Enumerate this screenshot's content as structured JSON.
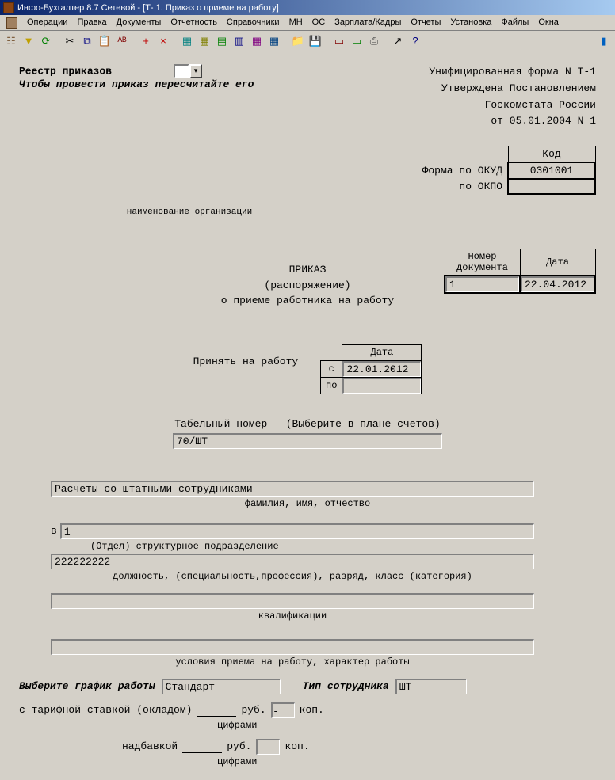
{
  "window": {
    "title": "Инфо-Бухгалтер 8.7 Сетевой - [Т- 1. Приказ о приеме на работу]"
  },
  "menu": {
    "items": [
      "Операции",
      "Правка",
      "Документы",
      "Отчетность",
      "Справочники",
      "МН",
      "ОС",
      "Зарплата/Кадры",
      "Отчеты",
      "Установка",
      "Файлы",
      "Окна"
    ]
  },
  "toolbar_icons": [
    {
      "name": "hierarchy-icon",
      "glyph": "☷",
      "color": "#806040"
    },
    {
      "name": "filter-icon",
      "glyph": "▼",
      "color": "#c0a000"
    },
    {
      "name": "refresh-icon",
      "glyph": "⟳",
      "color": "#008000"
    },
    {
      "name": "cut-icon",
      "glyph": "✂",
      "color": "#000"
    },
    {
      "name": "copy-icon",
      "glyph": "⧉",
      "color": "#000080"
    },
    {
      "name": "paste-icon",
      "glyph": "📋",
      "color": "#806000"
    },
    {
      "name": "abc-icon",
      "glyph": "ᴬᴮ",
      "color": "#800000"
    },
    {
      "name": "plus-icon",
      "glyph": "+",
      "color": "#c00000"
    },
    {
      "name": "delete-icon",
      "glyph": "×",
      "color": "#c00000"
    },
    {
      "name": "table1-icon",
      "glyph": "▦",
      "color": "#008080"
    },
    {
      "name": "table2-icon",
      "glyph": "▦",
      "color": "#808000"
    },
    {
      "name": "doc-icon",
      "glyph": "▤",
      "color": "#008000"
    },
    {
      "name": "report-icon",
      "glyph": "▥",
      "color": "#000080"
    },
    {
      "name": "grid-icon",
      "glyph": "▦",
      "color": "#800080"
    },
    {
      "name": "calc-icon",
      "glyph": "▦",
      "color": "#004080"
    },
    {
      "name": "folder-icon",
      "glyph": "📁",
      "color": "#c0a000"
    },
    {
      "name": "save-icon",
      "glyph": "💾",
      "color": "#000080"
    },
    {
      "name": "form1-icon",
      "glyph": "▭",
      "color": "#800000"
    },
    {
      "name": "form2-icon",
      "glyph": "▭",
      "color": "#008000"
    },
    {
      "name": "print-icon",
      "glyph": "⎙",
      "color": "#404040"
    },
    {
      "name": "arrow-icon",
      "glyph": "↗",
      "color": "#000"
    },
    {
      "name": "help-icon",
      "glyph": "?",
      "color": "#000080"
    },
    {
      "name": "end-icon",
      "glyph": "▮",
      "color": "#0060c0"
    }
  ],
  "doc": {
    "registry_label": "Реестр приказов",
    "registry_hint": "Чтобы провести приказ пересчитайте его",
    "form_line1": "Унифицированная форма N Т-1",
    "form_line2": "Утверждена Постановлением",
    "form_line3": "Госкомстата России",
    "form_line4": "от 05.01.2004 N 1",
    "code_hdr": "Код",
    "okud_label": "Форма по ОКУД",
    "okud_code": "0301001",
    "okpo_label": "по ОКПО",
    "okpo_code": "",
    "org_caption": "наименование организации",
    "docnum_hdr": "Номер документа",
    "date_hdr": "Дата",
    "docnum_val": "1",
    "docdate_val": "22.04.2012",
    "order_title": "ПРИКАЗ",
    "order_sub": "(распоряжение)",
    "order_about": "о приеме работника на работу",
    "accept_label": "Принять на работу",
    "date_col": "Дата",
    "from_lbl": "с",
    "to_lbl": "по",
    "from_date": "22.01.2012",
    "to_date": "",
    "tabnum_label": "Табельный номер",
    "tabnum_hint": "(Выберите в плане счетов)",
    "tabnum_val": "70/ШТ",
    "employee_name": "Расчеты со штатными сотрудниками",
    "fio_caption": "фамилия, имя, отчество",
    "v_label": "в",
    "dept_val": "1",
    "dept_cap": "(Отдел)      структурное подразделение",
    "position_val": "222222222",
    "position_cap": "должность, (специальность,профессия), разряд, класс (категория)",
    "qual_val": "",
    "qual_cap": "квалификации",
    "cond_val": "",
    "cond_cap": "условия приема на работу, характер работы",
    "sched_label": "Выберите график работы",
    "sched_val": "Стандарт",
    "emptype_label": "Тип сотрудника",
    "emptype_val": "ШТ",
    "salary_label": "с тарифной ставкой (окладом)",
    "rub": "руб.",
    "kop": "коп.",
    "digits": "цифрами",
    "bonus_label": "надбавкой",
    "bonus_kop": "-",
    "salary_kop": "-"
  }
}
